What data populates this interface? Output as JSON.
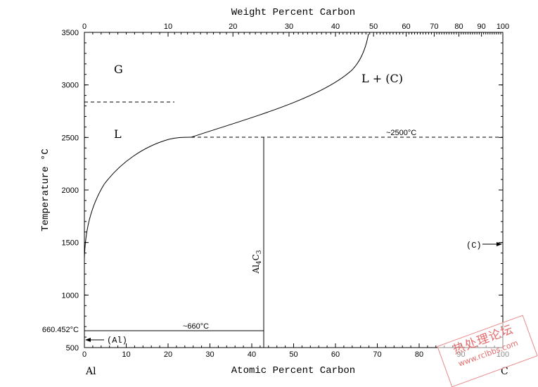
{
  "title_top": "Weight Percent Carbon",
  "xlabel_bottom": "Atomic Percent Carbon",
  "ylabel": "Temperature °C",
  "left_element": "Al",
  "right_element": "C",
  "y_ticks": [
    "3500",
    "3000",
    "2500",
    "2000",
    "1500",
    "1000",
    "500"
  ],
  "x_ticks_bottom": [
    "0",
    "10",
    "20",
    "30",
    "40",
    "50",
    "60",
    "70",
    "80",
    "90",
    "100"
  ],
  "x_ticks_top": [
    "0",
    "10",
    "20",
    "30",
    "40",
    "50",
    "60",
    "70",
    "80",
    "90",
    "100"
  ],
  "labels": {
    "gas": "G",
    "liquid": "L",
    "liquid_carbon": "L + (C)",
    "eutectic_high": "~2500°C",
    "eutectic_low": "~660°C",
    "al_melting": "660.452°C",
    "al_phase": "(Al)",
    "c_phase": "(C)",
    "compound": "Al4C3"
  },
  "watermark": {
    "line1": "热处理论坛",
    "line2": "www.rclbbs.com"
  }
}
